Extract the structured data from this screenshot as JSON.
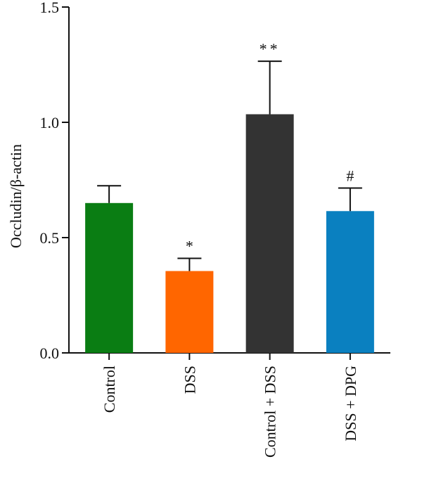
{
  "chart_data": {
    "type": "bar",
    "title": "",
    "xlabel": "",
    "ylabel": "Occludin/β-actin",
    "ylim": [
      0,
      1.5
    ],
    "yticks": [
      "0.0",
      "0.5",
      "1.0",
      "1.5"
    ],
    "ytick_values": [
      0,
      0.5,
      1.0,
      1.5
    ],
    "categories": [
      "Control",
      "DSS",
      "Control + DSS",
      "DSS + DPG"
    ],
    "values": [
      0.65,
      0.355,
      1.035,
      0.615
    ],
    "errors": [
      0.075,
      0.055,
      0.23,
      0.1
    ],
    "significance": [
      "",
      "*",
      "**",
      "#"
    ],
    "colors": [
      "#0a7d13",
      "#ff6600",
      "#333333",
      "#0a80c0"
    ],
    "grid": false,
    "legend": "none"
  }
}
